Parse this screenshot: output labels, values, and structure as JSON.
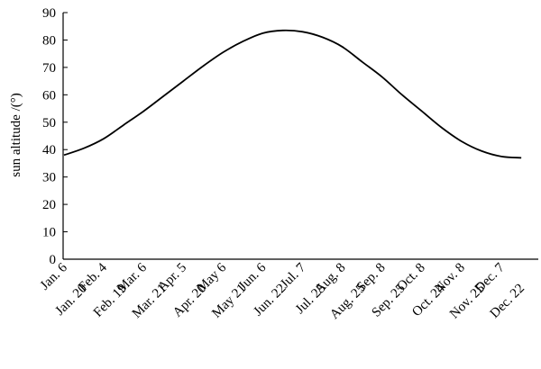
{
  "chart_data": {
    "type": "line",
    "y_label": "sun altitude /(°)",
    "categories": [
      "Jan. 6",
      "Jan. 20",
      "Feb. 4",
      "Feb. 19",
      "Mar. 6",
      "Mar. 21",
      "Apr. 5",
      "Apr. 20",
      "May 6",
      "May 21",
      "Jun. 6",
      "Jun. 22",
      "Jul. 7",
      "Jul. 25",
      "Aug. 8",
      "Aug. 25",
      "Sep. 8",
      "Sep. 25",
      "Oct. 8",
      "Oct. 24",
      "Nov. 8",
      "Nov. 25",
      "Dec. 7",
      "Dec. 22"
    ],
    "values": [
      38,
      40.5,
      44,
      49,
      54,
      59.5,
      65,
      70.5,
      75.5,
      79.5,
      82.5,
      83.5,
      83,
      81,
      77.5,
      72,
      66.5,
      60,
      54,
      48,
      43,
      39.5,
      37.5,
      37
    ],
    "color": "#000000",
    "ylim": [
      0,
      90
    ],
    "yticks": [
      0,
      10,
      20,
      30,
      40,
      50,
      60,
      70,
      80,
      90
    ]
  }
}
